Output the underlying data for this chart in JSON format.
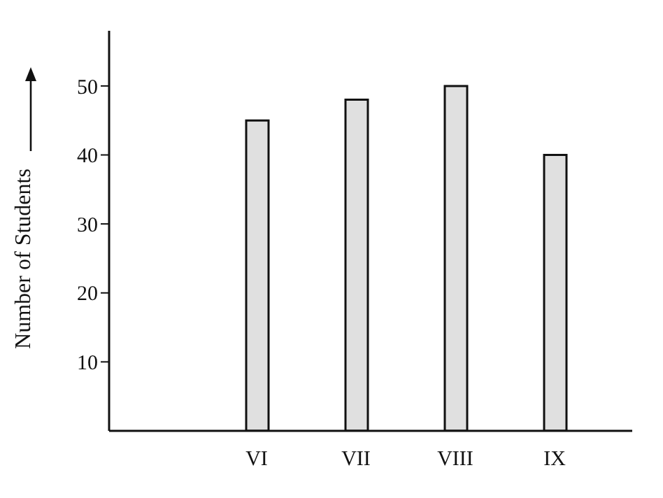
{
  "chart_data": {
    "type": "bar",
    "ylabel": "Number of Students",
    "categories": [
      "VI",
      "VII",
      "VIII",
      "IX"
    ],
    "values": [
      45,
      48,
      50,
      40
    ],
    "color": "#e0e0e0",
    "ylim": [
      0,
      58
    ],
    "yticks": [
      10,
      20,
      30,
      40,
      50
    ],
    "grid": false,
    "legend": false
  }
}
